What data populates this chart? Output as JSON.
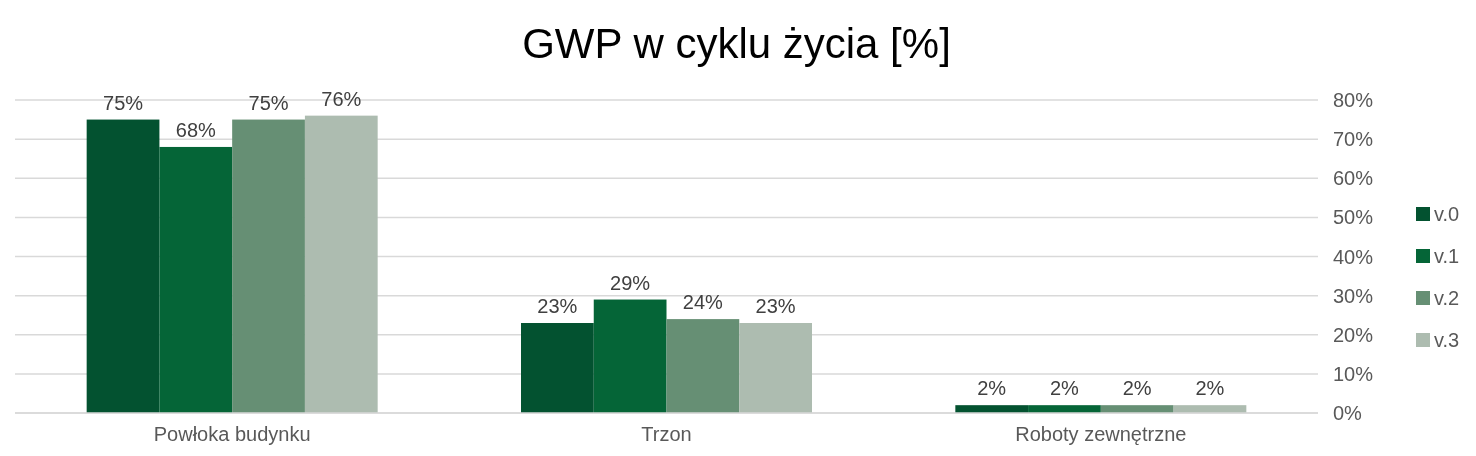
{
  "chart_data": {
    "type": "bar",
    "title": "GWP w cyklu życia [%]",
    "categories": [
      "Powłoka budynku",
      "Trzon",
      "Roboty zewnętrzne"
    ],
    "series": [
      {
        "name": "v.0",
        "color": "#035230",
        "values": [
          75,
          23,
          2
        ],
        "value_labels": [
          "75%",
          "23%",
          "2%"
        ]
      },
      {
        "name": "v.1",
        "color": "#056537",
        "values": [
          68,
          29,
          2
        ],
        "value_labels": [
          "68%",
          "29%",
          "2%"
        ]
      },
      {
        "name": "v.2",
        "color": "#668f74",
        "values": [
          75,
          24,
          2
        ],
        "value_labels": [
          "75%",
          "24%",
          "2%"
        ]
      },
      {
        "name": "v.3",
        "color": "#adbcb0",
        "values": [
          76,
          23,
          2
        ],
        "value_labels": [
          "76%",
          "23%",
          "2%"
        ]
      }
    ],
    "ylim": [
      0,
      80
    ],
    "yticks": [
      {
        "value": 0,
        "label": "0%"
      },
      {
        "value": 10,
        "label": "10%"
      },
      {
        "value": 20,
        "label": "20%"
      },
      {
        "value": 30,
        "label": "30%"
      },
      {
        "value": 40,
        "label": "40%"
      },
      {
        "value": 50,
        "label": "50%"
      },
      {
        "value": 60,
        "label": "60%"
      },
      {
        "value": 70,
        "label": "70%"
      },
      {
        "value": 80,
        "label": "80%"
      }
    ],
    "grid": "y",
    "legend": "right"
  }
}
